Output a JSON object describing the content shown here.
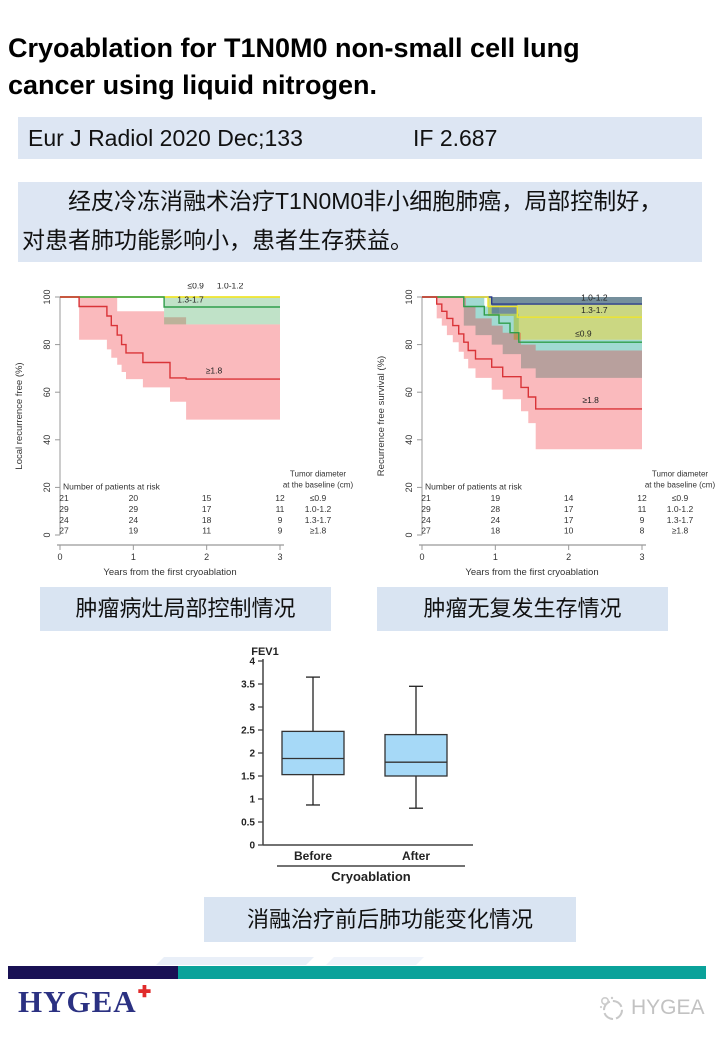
{
  "title": {
    "line1": " Cryoablation for T1N0M0 non-small cell lung",
    "line2": "cancer using liquid nitrogen."
  },
  "journal": {
    "citation": "Eur J Radiol 2020 Dec;133",
    "impact": "IF 2.687",
    "bg": "#dde6f3"
  },
  "summary": {
    "line1": "经皮冷冻消融术治疗T1N0M0非小细胞肺癌，局部控制好，",
    "line2": "对患者肺功能影响小，患者生存获益。",
    "bg": "#dde6f3"
  },
  "captions": {
    "local": "肿瘤病灶局部控制情况",
    "survival": "肿瘤无复发生存情况",
    "lung": "消融治疗前后肺功能变化情况",
    "bg": "#d9e4f2"
  },
  "footer": {
    "brand": "HYGEA",
    "plus": "✚",
    "watermark": "HYGEA",
    "navy": "#191154",
    "teal": "#0aa29a",
    "brand_color": "#2b3182",
    "plus_color": "#e02b2b",
    "watermark_color": "#c2c2c2"
  },
  "chart_data": [
    {
      "type": "line",
      "subtype": "kaplan-meier",
      "ylabel": "Local recurrence free (%)",
      "xlabel": "Years from the first cryoablation",
      "xlim": [
        0,
        3
      ],
      "ylim": [
        0,
        100
      ],
      "xticks": [
        0,
        1,
        2,
        3
      ],
      "yticks": [
        0,
        20,
        40,
        60,
        80,
        100
      ],
      "bands": [
        {
          "name": "ge1.8-ci",
          "color": "#ed1c24",
          "opacity": 0.3,
          "points": [
            [
              0.26,
              100
            ],
            [
              0.78,
              100
            ],
            [
              0.78,
              94
            ],
            [
              1.42,
              94
            ],
            [
              1.42,
              91.5
            ],
            [
              1.72,
              91.5
            ],
            [
              1.72,
              88.5
            ],
            [
              3,
              88.5
            ],
            [
              3,
              48.5
            ],
            [
              1.72,
              48.5
            ],
            [
              1.72,
              56
            ],
            [
              1.5,
              56
            ],
            [
              1.5,
              62
            ],
            [
              1.13,
              62
            ],
            [
              1.13,
              65.5
            ],
            [
              0.9,
              65.5
            ],
            [
              0.9,
              68.5
            ],
            [
              0.84,
              68.5
            ],
            [
              0.84,
              71.5
            ],
            [
              0.78,
              71.5
            ],
            [
              0.78,
              74.5
            ],
            [
              0.7,
              74.5
            ],
            [
              0.7,
              78
            ],
            [
              0.64,
              78
            ],
            [
              0.64,
              82
            ],
            [
              0.26,
              82
            ]
          ]
        },
        {
          "name": "1.3-1.7-ci",
          "color": "#2f9e4a",
          "opacity": 0.3,
          "points": [
            [
              1.42,
              100
            ],
            [
              3,
              100
            ],
            [
              3,
              88.5
            ],
            [
              1.42,
              88.5
            ]
          ]
        }
      ],
      "series": [
        {
          "name": "≤0.9",
          "color": "#efe52c",
          "label_pos": [
            1.85,
            103.5
          ],
          "points": [
            [
              0,
              100
            ],
            [
              3,
              100
            ]
          ]
        },
        {
          "name": "1.0-1.2",
          "color": "#efe52c",
          "label_pos": [
            2.32,
            103.5
          ],
          "points": [
            [
              0,
              100
            ],
            [
              3,
              100
            ]
          ]
        },
        {
          "name": "1.3-1.7",
          "color": "#2f9e4a",
          "label_pos": [
            1.78,
            97.6
          ],
          "points": [
            [
              0,
              100
            ],
            [
              1.42,
              100
            ],
            [
              1.42,
              95.8
            ],
            [
              3,
              95.8
            ]
          ]
        },
        {
          "name": "≥1.8",
          "color": "#d93438",
          "label_pos": [
            2.1,
            67.8
          ],
          "points": [
            [
              0,
              100
            ],
            [
              0.26,
              100
            ],
            [
              0.26,
              96
            ],
            [
              0.64,
              96
            ],
            [
              0.64,
              92
            ],
            [
              0.7,
              92
            ],
            [
              0.7,
              88
            ],
            [
              0.78,
              88
            ],
            [
              0.78,
              84
            ],
            [
              0.84,
              84
            ],
            [
              0.84,
              80
            ],
            [
              0.9,
              80
            ],
            [
              0.9,
              76.5
            ],
            [
              1.13,
              76.5
            ],
            [
              1.13,
              72.5
            ],
            [
              1.5,
              72.5
            ],
            [
              1.5,
              66
            ],
            [
              1.72,
              66
            ],
            [
              1.72,
              65.5
            ],
            [
              3,
              65.5
            ]
          ]
        }
      ],
      "risk_table": {
        "header": "Number of patients at risk",
        "rows": [
          {
            "group": "≤0.9",
            "values": [
              21,
              20,
              15,
              12
            ]
          },
          {
            "group": "1.0-1.2",
            "values": [
              29,
              29,
              17,
              11
            ]
          },
          {
            "group": "1.3-1.7",
            "values": [
              24,
              24,
              18,
              9
            ]
          },
          {
            "group": "≥1.8",
            "values": [
              27,
              19,
              11,
              9
            ]
          }
        ]
      },
      "legend_title": [
        "Tumor diameter",
        "at the baseline (cm)"
      ]
    },
    {
      "type": "line",
      "subtype": "kaplan-meier",
      "ylabel": "Recurrence free survival (%)",
      "xlabel": "Years from the first cryoablation",
      "xlim": [
        0,
        3
      ],
      "ylim": [
        0,
        100
      ],
      "xticks": [
        0,
        1,
        2,
        3
      ],
      "yticks": [
        0,
        20,
        40,
        60,
        80,
        100
      ],
      "bands": [
        {
          "name": "le0.9-ci",
          "color": "#2fae9b",
          "opacity": 0.45,
          "points": [
            [
              0.57,
              100
            ],
            [
              0.85,
              100
            ],
            [
              0.85,
              96
            ],
            [
              1.05,
              96
            ],
            [
              1.05,
              93
            ],
            [
              1.32,
              93
            ],
            [
              1.32,
              82
            ],
            [
              3,
              82
            ],
            [
              3,
              66
            ],
            [
              1.55,
              66
            ],
            [
              1.55,
              70
            ],
            [
              1.35,
              70
            ],
            [
              1.35,
              76
            ],
            [
              1.1,
              76
            ],
            [
              1.1,
              80
            ],
            [
              0.95,
              80
            ],
            [
              0.95,
              84
            ],
            [
              0.73,
              84
            ],
            [
              0.73,
              88
            ],
            [
              0.57,
              88
            ]
          ]
        },
        {
          "name": "1.3-1.7-ci",
          "color": "#a8bc2e",
          "opacity": 0.6,
          "points": [
            [
              0.9,
              100
            ],
            [
              3,
              100
            ],
            [
              3,
              82
            ],
            [
              1.25,
              82
            ],
            [
              1.25,
              92
            ],
            [
              0.9,
              92
            ]
          ]
        },
        {
          "name": "1.0-1.2-ci",
          "color": "#3c5fae",
          "opacity": 0.6,
          "points": [
            [
              0.95,
              100
            ],
            [
              3,
              100
            ],
            [
              3,
              97
            ],
            [
              1.3,
              97
            ],
            [
              1.3,
              93
            ],
            [
              0.95,
              93
            ]
          ]
        },
        {
          "name": "ge1.8-ci",
          "color": "#ed1c24",
          "opacity": 0.3,
          "points": [
            [
              0.2,
              100
            ],
            [
              0.6,
              100
            ],
            [
              0.6,
              96
            ],
            [
              0.73,
              96
            ],
            [
              0.73,
              91
            ],
            [
              0.95,
              91
            ],
            [
              0.95,
              88
            ],
            [
              1.1,
              88
            ],
            [
              1.1,
              85
            ],
            [
              1.35,
              85
            ],
            [
              1.35,
              80
            ],
            [
              1.55,
              80
            ],
            [
              1.55,
              77.5
            ],
            [
              3,
              77.5
            ],
            [
              3,
              36
            ],
            [
              1.55,
              36
            ],
            [
              1.55,
              47
            ],
            [
              1.45,
              47
            ],
            [
              1.45,
              52
            ],
            [
              1.35,
              52
            ],
            [
              1.35,
              57
            ],
            [
              1.1,
              57
            ],
            [
              1.1,
              61
            ],
            [
              0.95,
              61
            ],
            [
              0.95,
              66
            ],
            [
              0.73,
              66
            ],
            [
              0.73,
              70
            ],
            [
              0.63,
              70
            ],
            [
              0.63,
              74
            ],
            [
              0.57,
              74
            ],
            [
              0.57,
              77
            ],
            [
              0.5,
              77
            ],
            [
              0.5,
              81
            ],
            [
              0.42,
              81
            ],
            [
              0.42,
              84
            ],
            [
              0.34,
              84
            ],
            [
              0.34,
              88
            ],
            [
              0.27,
              88
            ],
            [
              0.27,
              91
            ],
            [
              0.2,
              91
            ]
          ]
        }
      ],
      "series": [
        {
          "name": "1.0-1.2",
          "color": "#2c3c8c",
          "label_pos": [
            2.35,
            98.6
          ],
          "points": [
            [
              0,
              100
            ],
            [
              0.95,
              100
            ],
            [
              0.95,
              97
            ],
            [
              3,
              97
            ]
          ]
        },
        {
          "name": "1.3-1.7",
          "color": "#efe52c",
          "label_pos": [
            2.35,
            93.2
          ],
          "points": [
            [
              0,
              100
            ],
            [
              0.9,
              100
            ],
            [
              0.9,
              96
            ],
            [
              1.3,
              96
            ],
            [
              1.3,
              91.5
            ],
            [
              3,
              91.5
            ]
          ]
        },
        {
          "name": "≤0.9",
          "color": "#2f9e4a",
          "label_pos": [
            2.2,
            83.4
          ],
          "points": [
            [
              0,
              100
            ],
            [
              0.57,
              100
            ],
            [
              0.57,
              96
            ],
            [
              0.85,
              96
            ],
            [
              0.85,
              92.5
            ],
            [
              1.05,
              92.5
            ],
            [
              1.05,
              89
            ],
            [
              1.2,
              89
            ],
            [
              1.2,
              85
            ],
            [
              1.32,
              85
            ],
            [
              1.32,
              81
            ],
            [
              3,
              81
            ]
          ]
        },
        {
          "name": "≥1.8",
          "color": "#d93438",
          "label_pos": [
            2.3,
            55.5
          ],
          "points": [
            [
              0,
              100
            ],
            [
              0.2,
              100
            ],
            [
              0.2,
              97
            ],
            [
              0.27,
              97
            ],
            [
              0.27,
              94
            ],
            [
              0.34,
              94
            ],
            [
              0.34,
              91
            ],
            [
              0.42,
              91
            ],
            [
              0.42,
              88
            ],
            [
              0.5,
              88
            ],
            [
              0.5,
              84.5
            ],
            [
              0.57,
              84.5
            ],
            [
              0.57,
              81
            ],
            [
              0.63,
              81
            ],
            [
              0.63,
              77.5
            ],
            [
              0.73,
              77.5
            ],
            [
              0.73,
              74
            ],
            [
              0.95,
              74
            ],
            [
              0.95,
              70.5
            ],
            [
              1.1,
              70.5
            ],
            [
              1.1,
              66.5
            ],
            [
              1.35,
              66.5
            ],
            [
              1.35,
              62
            ],
            [
              1.45,
              62
            ],
            [
              1.45,
              58
            ],
            [
              1.55,
              58
            ],
            [
              1.55,
              53
            ],
            [
              3,
              53
            ]
          ]
        }
      ],
      "risk_table": {
        "header": "Number of patients at risk",
        "rows": [
          {
            "group": "≤0.9",
            "values": [
              21,
              19,
              14,
              12
            ]
          },
          {
            "group": "1.0-1.2",
            "values": [
              29,
              28,
              17,
              11
            ]
          },
          {
            "group": "1.3-1.7",
            "values": [
              24,
              24,
              17,
              9
            ]
          },
          {
            "group": "≥1.8",
            "values": [
              27,
              18,
              10,
              8
            ]
          }
        ]
      },
      "legend_title": [
        "Tumor diameter",
        "at the baseline (cm)"
      ]
    },
    {
      "type": "box",
      "title": "FEV1",
      "xlabel": "Cryoablation",
      "ylim": [
        0,
        4
      ],
      "yticks": [
        0,
        0.5,
        1,
        1.5,
        2,
        2.5,
        3,
        3.5,
        4
      ],
      "categories": [
        "Before",
        "After"
      ],
      "boxes": [
        {
          "whisker_low": 0.87,
          "q1": 1.53,
          "median": 1.88,
          "q3": 2.47,
          "whisker_high": 3.65
        },
        {
          "whisker_low": 0.8,
          "q1": 1.5,
          "median": 1.8,
          "q3": 2.4,
          "whisker_high": 3.45
        }
      ],
      "box_fill": "#a6d9f7"
    }
  ]
}
